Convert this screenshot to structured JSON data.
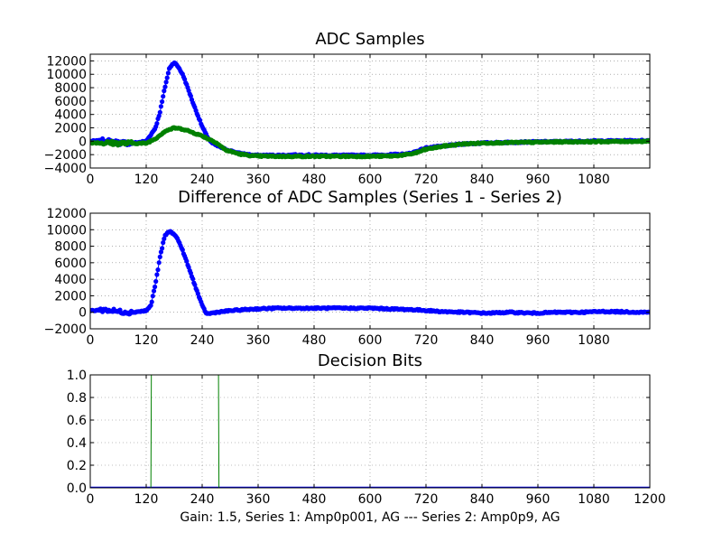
{
  "figure": {
    "xlabel": "Gain: 1.5, Series 1: Amp0p001, AG --- Series 2: Amp0p9, AG",
    "colors": {
      "series1": "#0000ff",
      "series2": "#008000",
      "grid": "#808080"
    }
  },
  "chart_data": [
    {
      "type": "scatter",
      "title": "ADC Samples",
      "xlim": [
        0,
        1200
      ],
      "ylim": [
        -4000,
        13000
      ],
      "xticks": [
        "0",
        "120",
        "240",
        "360",
        "480",
        "600",
        "720",
        "840",
        "960",
        "1080"
      ],
      "yticks": [
        "−4000",
        "−2000",
        "0",
        "2000",
        "4000",
        "6000",
        "8000",
        "10000",
        "12000"
      ],
      "grid": true,
      "series": [
        {
          "color": "#0000ff",
          "x": [
            0,
            30,
            60,
            90,
            120,
            140,
            150,
            160,
            170,
            180,
            190,
            200,
            210,
            220,
            230,
            240,
            250,
            260,
            270,
            290,
            320,
            350,
            400,
            450,
            500,
            550,
            600,
            650,
            680,
            700,
            720,
            760,
            800,
            850,
            900,
            950,
            1000,
            1050,
            1100,
            1200
          ],
          "values": [
            0,
            100,
            -200,
            -300,
            0,
            2000,
            4500,
            8000,
            11000,
            11800,
            11000,
            9700,
            7800,
            5800,
            4000,
            2200,
            800,
            -200,
            -600,
            -1200,
            -1800,
            -2100,
            -2100,
            -2050,
            -2100,
            -2100,
            -2100,
            -2000,
            -1900,
            -1500,
            -1000,
            -700,
            -400,
            -250,
            -150,
            -100,
            -50,
            0,
            50,
            100
          ]
        },
        {
          "color": "#008000",
          "x": [
            0,
            60,
            120,
            140,
            160,
            180,
            200,
            240,
            270,
            290,
            320,
            350,
            400,
            500,
            600,
            650,
            680,
            700,
            720,
            760,
            800,
            850,
            900,
            1000,
            1100,
            1200
          ],
          "values": [
            -200,
            -300,
            -300,
            400,
            1500,
            2000,
            1800,
            800,
            -200,
            -1300,
            -1900,
            -2200,
            -2250,
            -2250,
            -2250,
            -2200,
            -2000,
            -1700,
            -1200,
            -700,
            -400,
            -250,
            -200,
            -100,
            -50,
            0
          ]
        }
      ]
    },
    {
      "type": "scatter",
      "title": "Difference of ADC Samples (Series 1 - Series 2)",
      "xlim": [
        0,
        1200
      ],
      "ylim": [
        -2000,
        12000
      ],
      "xticks": [
        "0",
        "120",
        "240",
        "360",
        "480",
        "600",
        "720",
        "840",
        "960",
        "1080"
      ],
      "yticks": [
        "−2000",
        "0",
        "2000",
        "4000",
        "6000",
        "8000",
        "10000",
        "12000"
      ],
      "grid": true,
      "series": [
        {
          "color": "#0000ff",
          "x": [
            0,
            30,
            60,
            90,
            120,
            130,
            140,
            150,
            160,
            170,
            180,
            190,
            200,
            210,
            220,
            230,
            240,
            250,
            270,
            300,
            350,
            400,
            450,
            500,
            550,
            600,
            650,
            700,
            750,
            800,
            850,
            900,
            950,
            1000,
            1050,
            1100,
            1200
          ],
          "values": [
            200,
            300,
            100,
            0,
            200,
            800,
            3500,
            6800,
            9300,
            9800,
            9500,
            8600,
            7200,
            5600,
            4000,
            2400,
            800,
            -200,
            0,
            200,
            400,
            500,
            500,
            500,
            500,
            500,
            400,
            300,
            100,
            0,
            -100,
            0,
            -100,
            0,
            0,
            100,
            0
          ]
        }
      ]
    },
    {
      "type": "line",
      "title": "Decision Bits",
      "xlim": [
        0,
        1200
      ],
      "ylim": [
        0,
        1
      ],
      "xticks": [
        "0",
        "120",
        "240",
        "360",
        "480",
        "600",
        "720",
        "840",
        "960",
        "1080",
        "1200"
      ],
      "yticks": [
        "0.0",
        "0.2",
        "0.4",
        "0.6",
        "0.8",
        "1.0"
      ],
      "grid": true,
      "series": [
        {
          "color": "#0000ff",
          "x": [
            0,
            1200
          ],
          "values": [
            0,
            0
          ]
        },
        {
          "color": "#008000",
          "x": [
            0,
            130,
            131,
            275,
            276,
            1200
          ],
          "values": [
            0,
            0,
            1,
            1,
            0,
            0
          ]
        }
      ]
    }
  ]
}
